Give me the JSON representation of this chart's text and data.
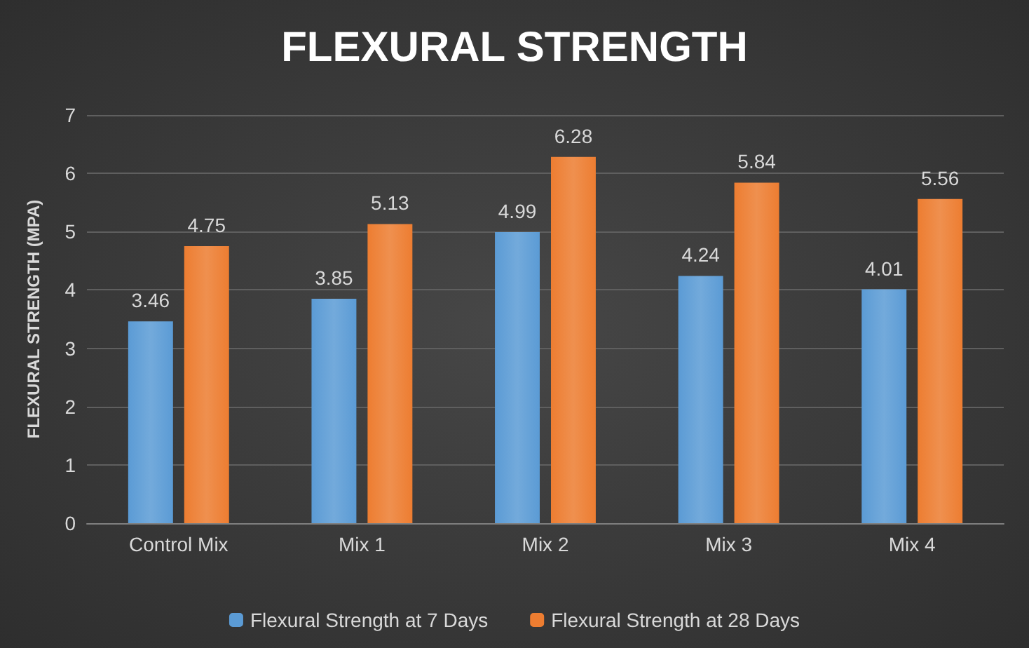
{
  "chart_data": {
    "type": "bar",
    "title": "FLEXURAL STRENGTH",
    "ylabel": "FLEXURAL STRENGTH (MPA)",
    "categories": [
      "Control Mix",
      "Mix 1",
      "Mix 2",
      "Mix 3",
      "Mix 4"
    ],
    "series": [
      {
        "name": "Flexural Strength at 7 Days",
        "color": "#5b9bd5",
        "values": [
          3.46,
          3.85,
          4.99,
          4.24,
          4.01
        ]
      },
      {
        "name": "Flexural Strength at 28 Days",
        "color": "#ed7d31",
        "values": [
          4.75,
          5.13,
          6.28,
          5.84,
          5.56
        ]
      }
    ],
    "ylim": [
      0,
      7
    ],
    "yticks": [
      0,
      1,
      2,
      3,
      4,
      5,
      6,
      7
    ],
    "grid": "y",
    "legend": "bottom",
    "data_labels": true
  }
}
